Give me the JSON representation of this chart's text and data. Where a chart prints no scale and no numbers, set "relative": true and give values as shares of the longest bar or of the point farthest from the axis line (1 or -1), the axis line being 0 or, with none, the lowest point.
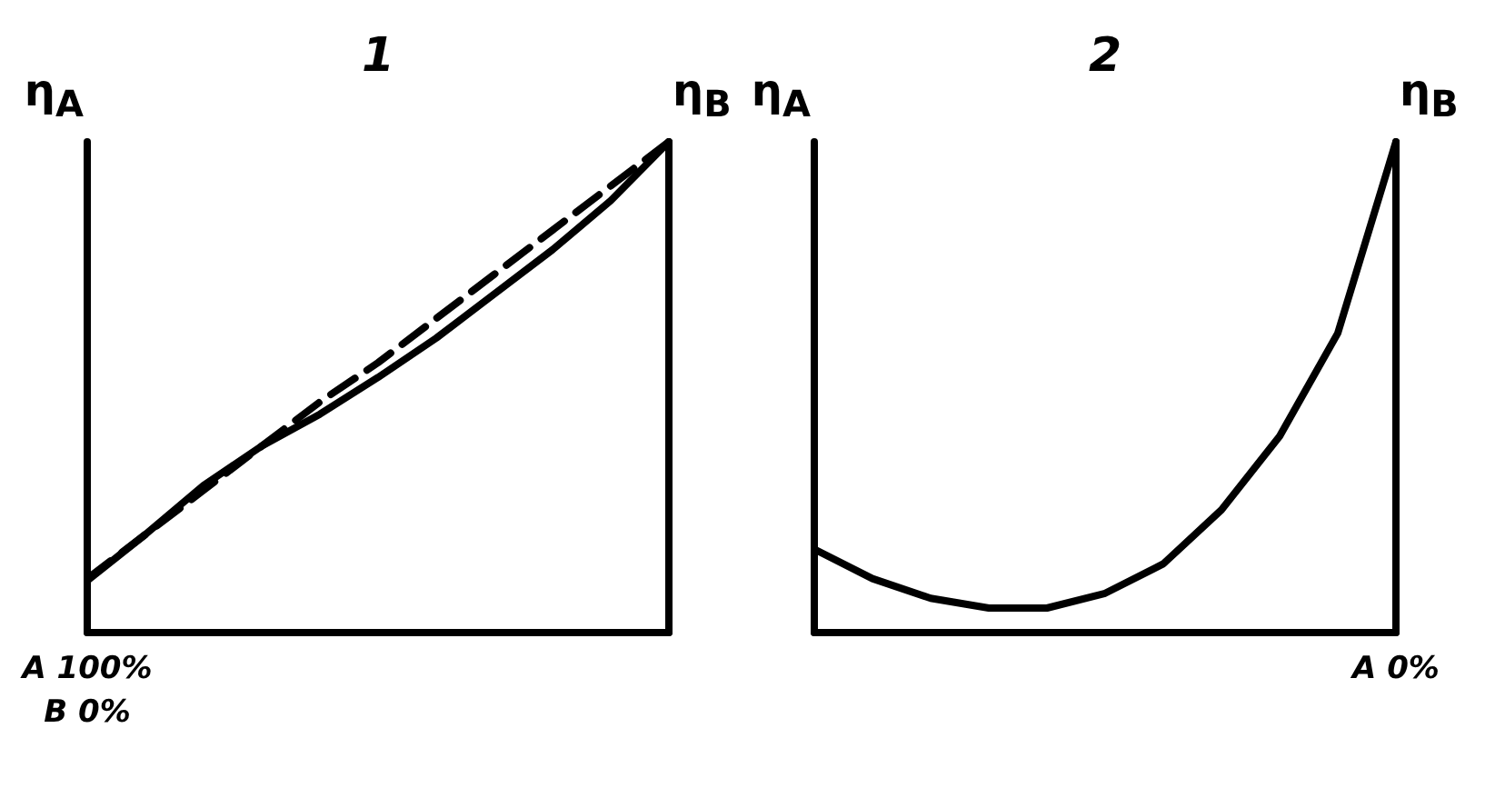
{
  "chart_data": [
    {
      "type": "line",
      "title": "1",
      "ylabel": "η$_{A}$",
      "y2label": "η$_{B}$",
      "relative": true,
      "grid": false,
      "marker": "none",
      "categories": [
        null,
        null,
        null,
        null,
        null,
        null,
        null,
        null,
        null,
        null,
        null
      ],
      "annotations": [
        "A 100%",
        "B 0%"
      ],
      "series": [
        {
          "color": "#000000",
          "line_style": "solid",
          "values": [
            0.106,
            0.2,
            0.3,
            0.38,
            0.445,
            0.52,
            0.6,
            0.69,
            0.78,
            0.88,
            1.0
          ]
        },
        {
          "color": "#000000",
          "line_style": "dashed",
          "values": [
            0.11,
            0.2,
            0.29,
            0.38,
            0.47,
            0.55,
            0.64,
            0.73,
            0.82,
            0.91,
            1.0
          ]
        }
      ]
    },
    {
      "type": "line",
      "title": "2",
      "ylabel": "η$_{A}$",
      "y2label": "η$_{B}$",
      "relative": true,
      "grid": false,
      "marker": "none",
      "categories": [
        null,
        null,
        null,
        null,
        null,
        null,
        null,
        null,
        null,
        null,
        null
      ],
      "annotations": [
        "A 0%"
      ],
      "series": [
        {
          "color": "#000000",
          "line_style": "solid",
          "values": [
            0.17,
            0.11,
            0.07,
            0.05,
            0.05,
            0.08,
            0.14,
            0.25,
            0.4,
            0.61,
            1.0
          ]
        }
      ]
    }
  ]
}
